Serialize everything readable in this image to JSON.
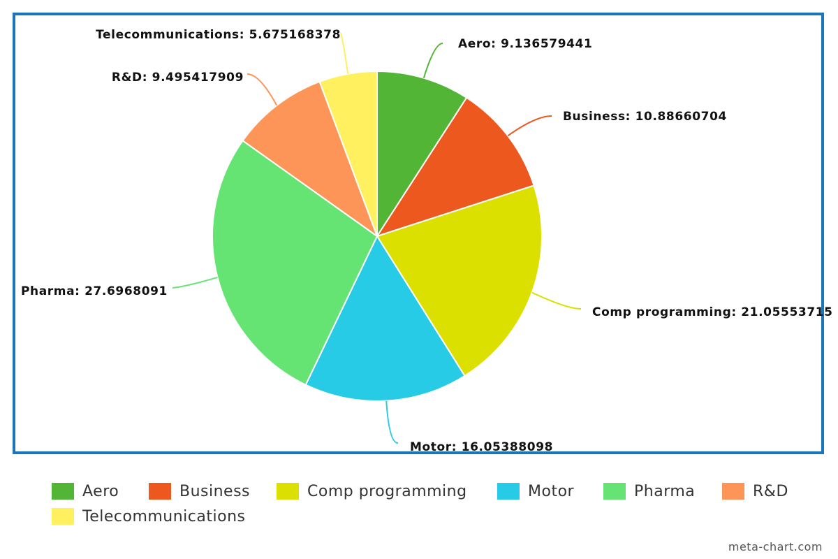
{
  "chart_data": {
    "type": "pie",
    "categories": [
      "Aero",
      "Business",
      "Comp programming",
      "Motor",
      "Pharma",
      "R&D",
      "Telecommunications"
    ],
    "values": [
      9.136579441,
      10.88660704,
      21.05553715,
      16.05388098,
      27.6968091,
      9.495417909,
      5.675168378
    ],
    "slice_labels": [
      "Aero: 9.136579441",
      "Business: 10.88660704",
      "Comp programming: 21.05553715",
      "Motor: 16.05388098",
      "Pharma: 27.6968091",
      "R&D: 9.495417909",
      "Telecommunications: 5.675168378"
    ],
    "colors": [
      "#52b536",
      "#ec581e",
      "#dbe000",
      "#27cbe6",
      "#66e473",
      "#fd9458",
      "#fff060"
    ],
    "legend_position": "bottom",
    "start_angle": "top, clockwise"
  },
  "legend": {
    "items": [
      "Aero",
      "Business",
      "Comp programming",
      "Motor",
      "Pharma",
      "R&D",
      "Telecommunications"
    ]
  },
  "credit": "meta-chart.com",
  "frame_color": "#1b75bb"
}
